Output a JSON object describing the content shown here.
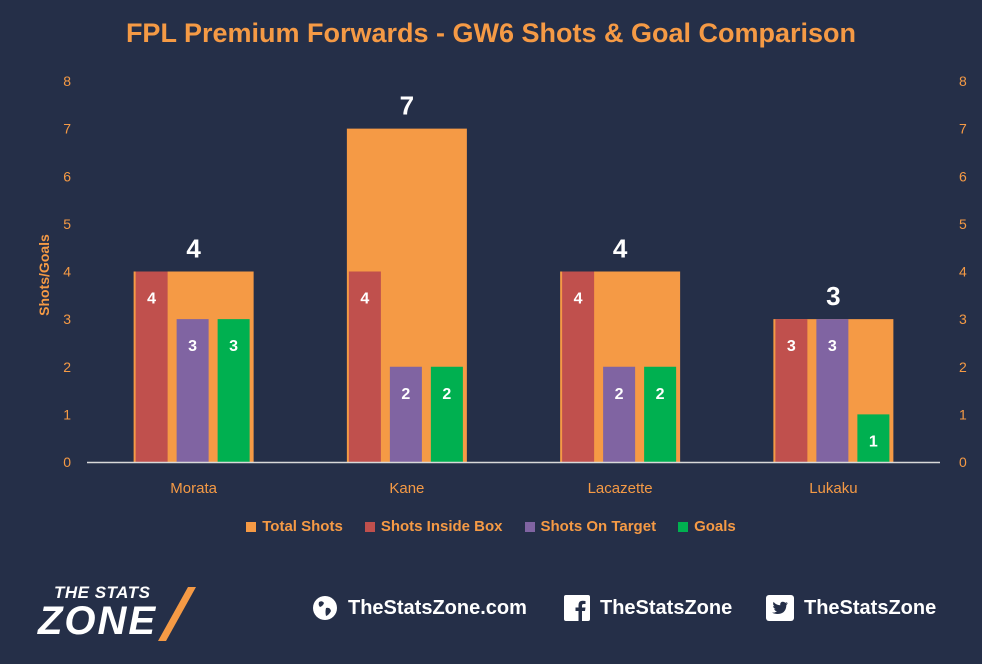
{
  "chart_data": {
    "type": "bar",
    "title": "FPL Premium Forwards - GW6 Shots & Goal Comparison",
    "ylabel": "Shots/Goals",
    "xlabel": "",
    "ylim": [
      0,
      8
    ],
    "yticks": [
      0,
      1,
      2,
      3,
      4,
      5,
      6,
      7,
      8
    ],
    "grid": false,
    "legend_position": "bottom",
    "categories": [
      "Morata",
      "Kane",
      "Lacazette",
      "Lukaku"
    ],
    "series": [
      {
        "name": "Total Shots",
        "values": [
          4,
          7,
          4,
          3
        ],
        "color": "#f59a45"
      },
      {
        "name": "Shots Inside Box",
        "values": [
          4,
          4,
          4,
          3
        ],
        "color": "#c0504d"
      },
      {
        "name": "Shots On Target",
        "values": [
          3,
          2,
          2,
          3
        ],
        "color": "#8064a2"
      },
      {
        "name": "Goals",
        "values": [
          3,
          2,
          2,
          1
        ],
        "color": "#00b050"
      }
    ]
  },
  "footer": {
    "logo_top": "THE STATS",
    "logo_bottom": "ZONE",
    "website": "TheStatsZone.com",
    "facebook": "TheStatsZone",
    "twitter": "TheStatsZone",
    "icons": [
      "globe-icon",
      "facebook-icon",
      "twitter-icon"
    ]
  },
  "colors": {
    "background": "#252f48",
    "accent": "#f59a45",
    "axis_text": "#f59a45"
  }
}
